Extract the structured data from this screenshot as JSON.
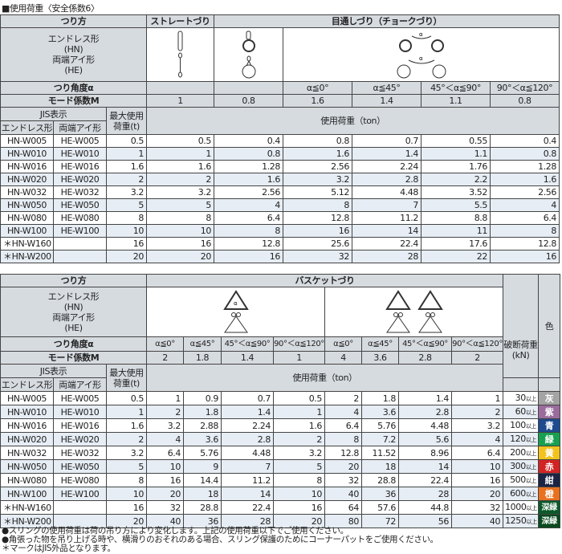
{
  "title": "■使用荷重〈安全係数6〉",
  "t1": {
    "method_label": "つり方",
    "straight": "ストレートづり",
    "choke": "目通しづり（チョークづり）",
    "type_endless": "エンドレス形",
    "type_endless_code": "(HN)",
    "type_eye": "両端アイ形",
    "type_eye_code": "(HE)",
    "angle_label": "つり角度α",
    "angles": [
      "α≦0°",
      "α≦45°",
      "45°＜α≦90°",
      "90°＜α≦120°"
    ],
    "mode_label": "モード係数M",
    "modes": [
      "1",
      "0.8",
      "1.6",
      "1.4",
      "1.1",
      "0.8"
    ],
    "jis": "JIS表示",
    "endless": "エンドレス形",
    "eye": "両端アイ形",
    "max": "最大使用",
    "max2": "荷重(t)",
    "load": "使用荷重（ton）",
    "rows": [
      [
        "HN-W005",
        "HE-W005",
        "0.5",
        "0.5",
        "0.4",
        "0.8",
        "0.7",
        "0.55",
        "0.4"
      ],
      [
        "HN-W010",
        "HE-W010",
        "1",
        "1",
        "0.8",
        "1.6",
        "1.4",
        "1.1",
        "0.8"
      ],
      [
        "HN-W016",
        "HE-W016",
        "1.6",
        "1.6",
        "1.28",
        "2.56",
        "2.24",
        "1.76",
        "1.28"
      ],
      [
        "HN-W020",
        "HE-W020",
        "2",
        "2",
        "1.6",
        "3.2",
        "2.8",
        "2.2",
        "1.6"
      ],
      [
        "HN-W032",
        "HE-W032",
        "3.2",
        "3.2",
        "2.56",
        "5.12",
        "4.48",
        "3.52",
        "2.56"
      ],
      [
        "HN-W050",
        "HE-W050",
        "5",
        "5",
        "4",
        "8",
        "7",
        "5.5",
        "4"
      ],
      [
        "HN-W080",
        "HE-W080",
        "8",
        "8",
        "6.4",
        "12.8",
        "11.2",
        "8.8",
        "6.4"
      ],
      [
        "HN-W100",
        "HE-W100",
        "10",
        "10",
        "8",
        "16",
        "14",
        "11",
        "8"
      ],
      [
        "＊HN-W160",
        "",
        "16",
        "16",
        "12.8",
        "25.6",
        "22.4",
        "17.6",
        "12.8"
      ],
      [
        "＊HN-W200",
        "",
        "20",
        "20",
        "16",
        "32",
        "28",
        "22",
        "16"
      ]
    ]
  },
  "t2": {
    "basket": "バスケットづり",
    "break": "破断荷重",
    "break_unit": "(kN)",
    "color": "色",
    "angles": [
      "α≦0°",
      "α≦45°",
      "45°＜α≦90°",
      "90°＜α≦120°",
      "α≦0°",
      "α≦45°",
      "45°＜α≦90°",
      "90°＜α≦120°"
    ],
    "modes": [
      "2",
      "1.8",
      "1.4",
      "1",
      "4",
      "3.6",
      "2.8",
      "2"
    ],
    "ijo": "以上",
    "rows": [
      [
        "HN-W005",
        "HE-W005",
        "0.5",
        "1",
        "0.9",
        "0.7",
        "0.5",
        "2",
        "1.8",
        "1.4",
        "1",
        "30",
        "灰",
        "#a4a4a4"
      ],
      [
        "HN-W010",
        "HE-W010",
        "1",
        "2",
        "1.8",
        "1.4",
        "1",
        "4",
        "3.6",
        "2.8",
        "2",
        "60",
        "紫",
        "#9a6c9e"
      ],
      [
        "HN-W016",
        "HE-W016",
        "1.6",
        "3.2",
        "2.88",
        "2.24",
        "1.6",
        "6.4",
        "5.76",
        "4.48",
        "3.2",
        "100",
        "青",
        "#1e4a8e"
      ],
      [
        "HN-W020",
        "HE-W020",
        "2",
        "4",
        "3.6",
        "2.8",
        "2",
        "8",
        "7.2",
        "5.6",
        "4",
        "120",
        "緑",
        "#18a050"
      ],
      [
        "HN-W032",
        "HE-W032",
        "3.2",
        "6.4",
        "5.76",
        "4.48",
        "3.2",
        "12.8",
        "11.52",
        "8.96",
        "6.4",
        "200",
        "黄",
        "#f2c21e"
      ],
      [
        "HN-W050",
        "HE-W050",
        "5",
        "10",
        "9",
        "7",
        "5",
        "20",
        "18",
        "14",
        "10",
        "300",
        "赤",
        "#d22424"
      ],
      [
        "HN-W080",
        "HE-W080",
        "8",
        "16",
        "14.4",
        "11.2",
        "8",
        "32",
        "28.8",
        "22.4",
        "16",
        "500",
        "紺",
        "#1c2444"
      ],
      [
        "HN-W100",
        "HE-W100",
        "10",
        "20",
        "18",
        "14",
        "10",
        "40",
        "36",
        "28",
        "20",
        "600",
        "橙",
        "#e8701e"
      ],
      [
        "＊HN-W160",
        "",
        "16",
        "32",
        "28.8",
        "22.4",
        "16",
        "64",
        "57.6",
        "44.8",
        "32",
        "1000",
        "深緑",
        "#0c5a2a"
      ],
      [
        "＊HN-W200",
        "",
        "20",
        "40",
        "36",
        "28",
        "20",
        "80",
        "72",
        "56",
        "40",
        "1250",
        "深緑",
        "#0a4a20"
      ]
    ]
  },
  "notes": [
    "●スリングの使用荷重は荷の吊り方により変化します。上記の使用荷重以下でご使用ください。",
    "●角張った物を吊り上げる時や、横滑りのおそれのある場合、スリング保護のためにコーナーパットをご使用ください。",
    "＊マークはJIS外品となります。"
  ]
}
